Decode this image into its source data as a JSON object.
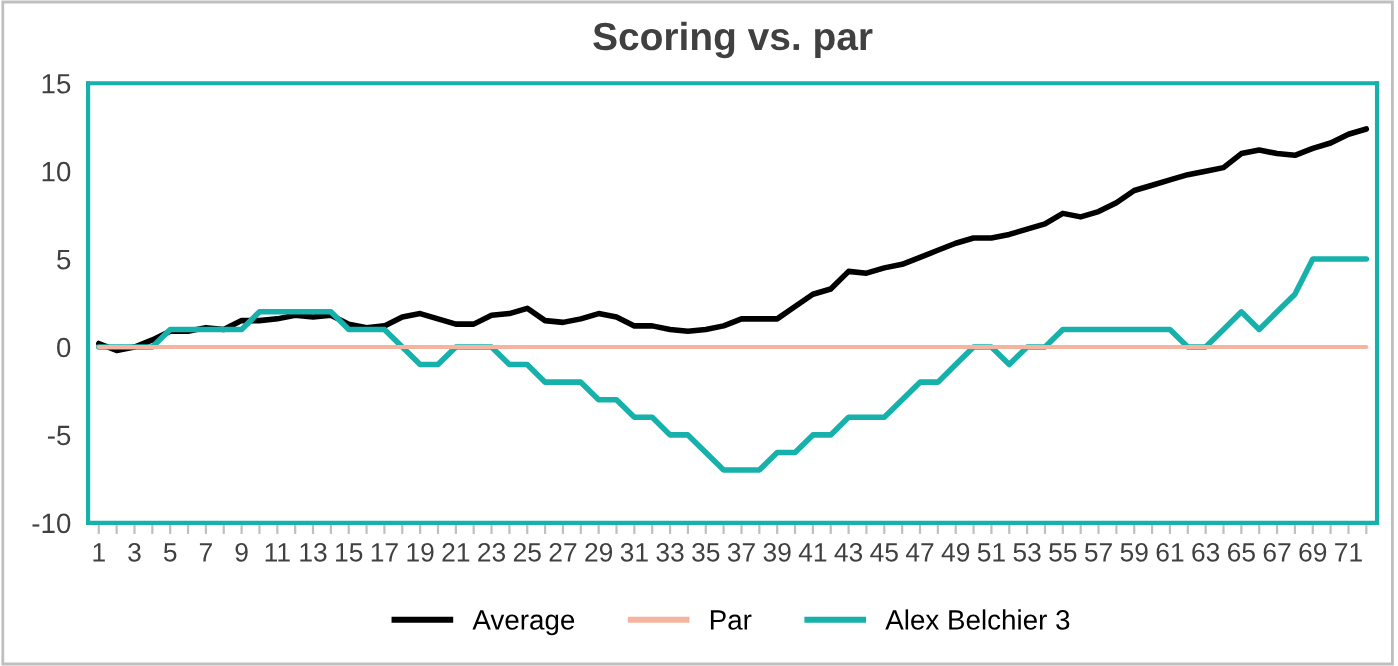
{
  "chart_data": {
    "type": "line",
    "title": "Scoring vs. par",
    "categories": [
      "1",
      null,
      "3",
      null,
      "5",
      null,
      "7",
      null,
      "9",
      null,
      "11",
      null,
      "13",
      null,
      "15",
      null,
      "17",
      null,
      "19",
      null,
      "21",
      null,
      "23",
      null,
      "25",
      null,
      "27",
      null,
      "29",
      null,
      "31",
      null,
      "33",
      null,
      "35",
      null,
      "37",
      null,
      "39",
      null,
      "41",
      null,
      "43",
      null,
      "45",
      null,
      "47",
      null,
      "49",
      null,
      "51",
      null,
      "53",
      null,
      "55",
      null,
      "57",
      null,
      "59",
      null,
      "61",
      null,
      "63",
      null,
      "65",
      null,
      "67",
      null,
      "69",
      null,
      "71",
      null
    ],
    "series": [
      {
        "name": "Average",
        "color": "#000000",
        "values": [
          0.2,
          -0.2,
          0,
          0.4,
          0.9,
          0.9,
          1.1,
          1.0,
          1.5,
          1.5,
          1.6,
          1.8,
          1.7,
          1.8,
          1.3,
          1.1,
          1.2,
          1.7,
          1.9,
          1.6,
          1.3,
          1.3,
          1.8,
          1.9,
          2.2,
          1.5,
          1.4,
          1.6,
          1.9,
          1.7,
          1.2,
          1.2,
          1.0,
          0.9,
          1.0,
          1.2,
          1.6,
          1.6,
          1.6,
          2.3,
          3.0,
          3.3,
          4.3,
          4.2,
          4.5,
          4.7,
          5.1,
          5.5,
          5.9,
          6.2,
          6.2,
          6.4,
          6.7,
          7.0,
          7.6,
          7.4,
          7.7,
          8.2,
          8.9,
          9.2,
          9.5,
          9.8,
          10.0,
          10.2,
          11.0,
          11.2,
          11.0,
          10.9,
          11.3,
          11.6,
          12.1,
          12.4
        ]
      },
      {
        "name": "Par",
        "color": "#f4b4a0",
        "values": [
          0,
          0,
          0,
          0,
          0,
          0,
          0,
          0,
          0,
          0,
          0,
          0,
          0,
          0,
          0,
          0,
          0,
          0,
          0,
          0,
          0,
          0,
          0,
          0,
          0,
          0,
          0,
          0,
          0,
          0,
          0,
          0,
          0,
          0,
          0,
          0,
          0,
          0,
          0,
          0,
          0,
          0,
          0,
          0,
          0,
          0,
          0,
          0,
          0,
          0,
          0,
          0,
          0,
          0,
          0,
          0,
          0,
          0,
          0,
          0,
          0,
          0,
          0,
          0,
          0,
          0,
          0,
          0,
          0,
          0,
          0,
          0
        ]
      },
      {
        "name": "Alex Belchier 3",
        "color": "#17b1ab",
        "values": [
          0,
          0,
          0,
          0,
          1,
          1,
          1,
          1,
          1,
          2,
          2,
          2,
          2,
          2,
          1,
          1,
          1,
          0,
          -1,
          -1,
          0,
          0,
          0,
          -1,
          -1,
          -2,
          -2,
          -2,
          -3,
          -3,
          -4,
          -4,
          -5,
          -5,
          -6,
          -7,
          -7,
          -7,
          -6,
          -6,
          -5,
          -5,
          -4,
          -4,
          -4,
          -3,
          -2,
          -2,
          -1,
          0,
          0,
          -1,
          0,
          0,
          1,
          1,
          1,
          1,
          1,
          1,
          1,
          0,
          0,
          1,
          2,
          1,
          2,
          3,
          5,
          5,
          5,
          5
        ]
      }
    ],
    "ylim": [
      -10,
      15
    ],
    "yticks": [
      -10,
      -5,
      0,
      5,
      10,
      15
    ],
    "grid": false,
    "legend": "bottom",
    "marker": "none",
    "line_style": "solid"
  }
}
